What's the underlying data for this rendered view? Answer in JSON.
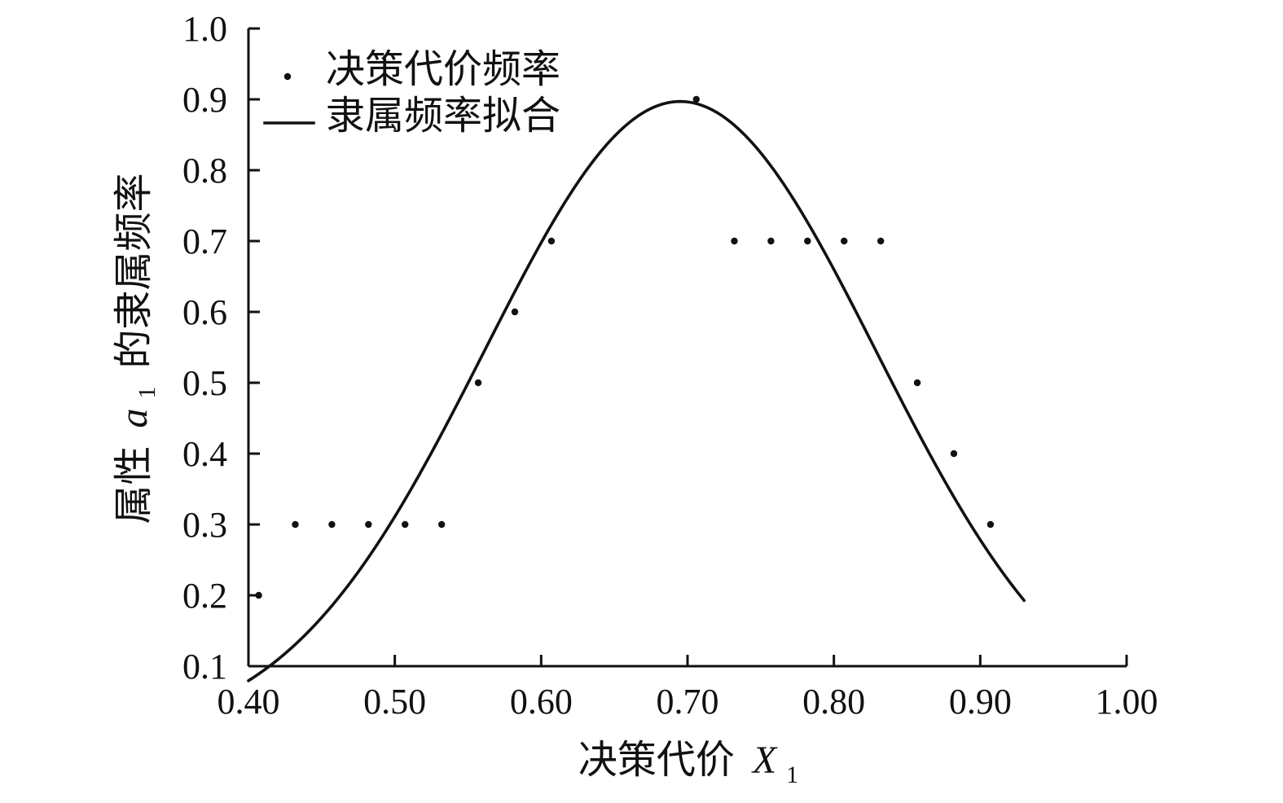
{
  "chart_data": {
    "type": "scatter",
    "title": "",
    "xlabel": {
      "prefix": "决策代价",
      "symbol": "X",
      "subscript": "1"
    },
    "ylabel": {
      "prefix": "属性",
      "symbol": "a",
      "subscript": "1",
      "suffix": "的隶属频率"
    },
    "xlim": [
      0.4,
      1.0
    ],
    "ylim": [
      0.1,
      1.0
    ],
    "xticks": [
      "0.40",
      "0.50",
      "0.60",
      "0.70",
      "0.80",
      "0.90",
      "1.00"
    ],
    "yticks": [
      "0.1",
      "0.2",
      "0.3",
      "0.4",
      "0.5",
      "0.6",
      "0.7",
      "0.8",
      "0.9",
      "1.0"
    ],
    "grid": false,
    "legend_position": "top-left",
    "series": [
      {
        "name": "决策代价频率",
        "kind": "points",
        "color": "#111111",
        "points": [
          {
            "x": 0.407,
            "y": 0.2
          },
          {
            "x": 0.432,
            "y": 0.3
          },
          {
            "x": 0.457,
            "y": 0.3
          },
          {
            "x": 0.482,
            "y": 0.3
          },
          {
            "x": 0.507,
            "y": 0.3
          },
          {
            "x": 0.532,
            "y": 0.3
          },
          {
            "x": 0.557,
            "y": 0.5
          },
          {
            "x": 0.582,
            "y": 0.6
          },
          {
            "x": 0.607,
            "y": 0.7
          },
          {
            "x": 0.706,
            "y": 0.9
          },
          {
            "x": 0.732,
            "y": 0.7
          },
          {
            "x": 0.757,
            "y": 0.7
          },
          {
            "x": 0.782,
            "y": 0.7
          },
          {
            "x": 0.807,
            "y": 0.7
          },
          {
            "x": 0.832,
            "y": 0.7
          },
          {
            "x": 0.857,
            "y": 0.5
          },
          {
            "x": 0.882,
            "y": 0.4
          },
          {
            "x": 0.907,
            "y": 0.3
          }
        ]
      },
      {
        "name": "隶属频率拟合",
        "kind": "line",
        "color": "#111111",
        "model": {
          "form": "gaussian",
          "amplitude": 0.897,
          "mean": 0.695,
          "sigma": 0.134
        },
        "x_range": [
          0.4,
          0.93
        ]
      }
    ]
  }
}
